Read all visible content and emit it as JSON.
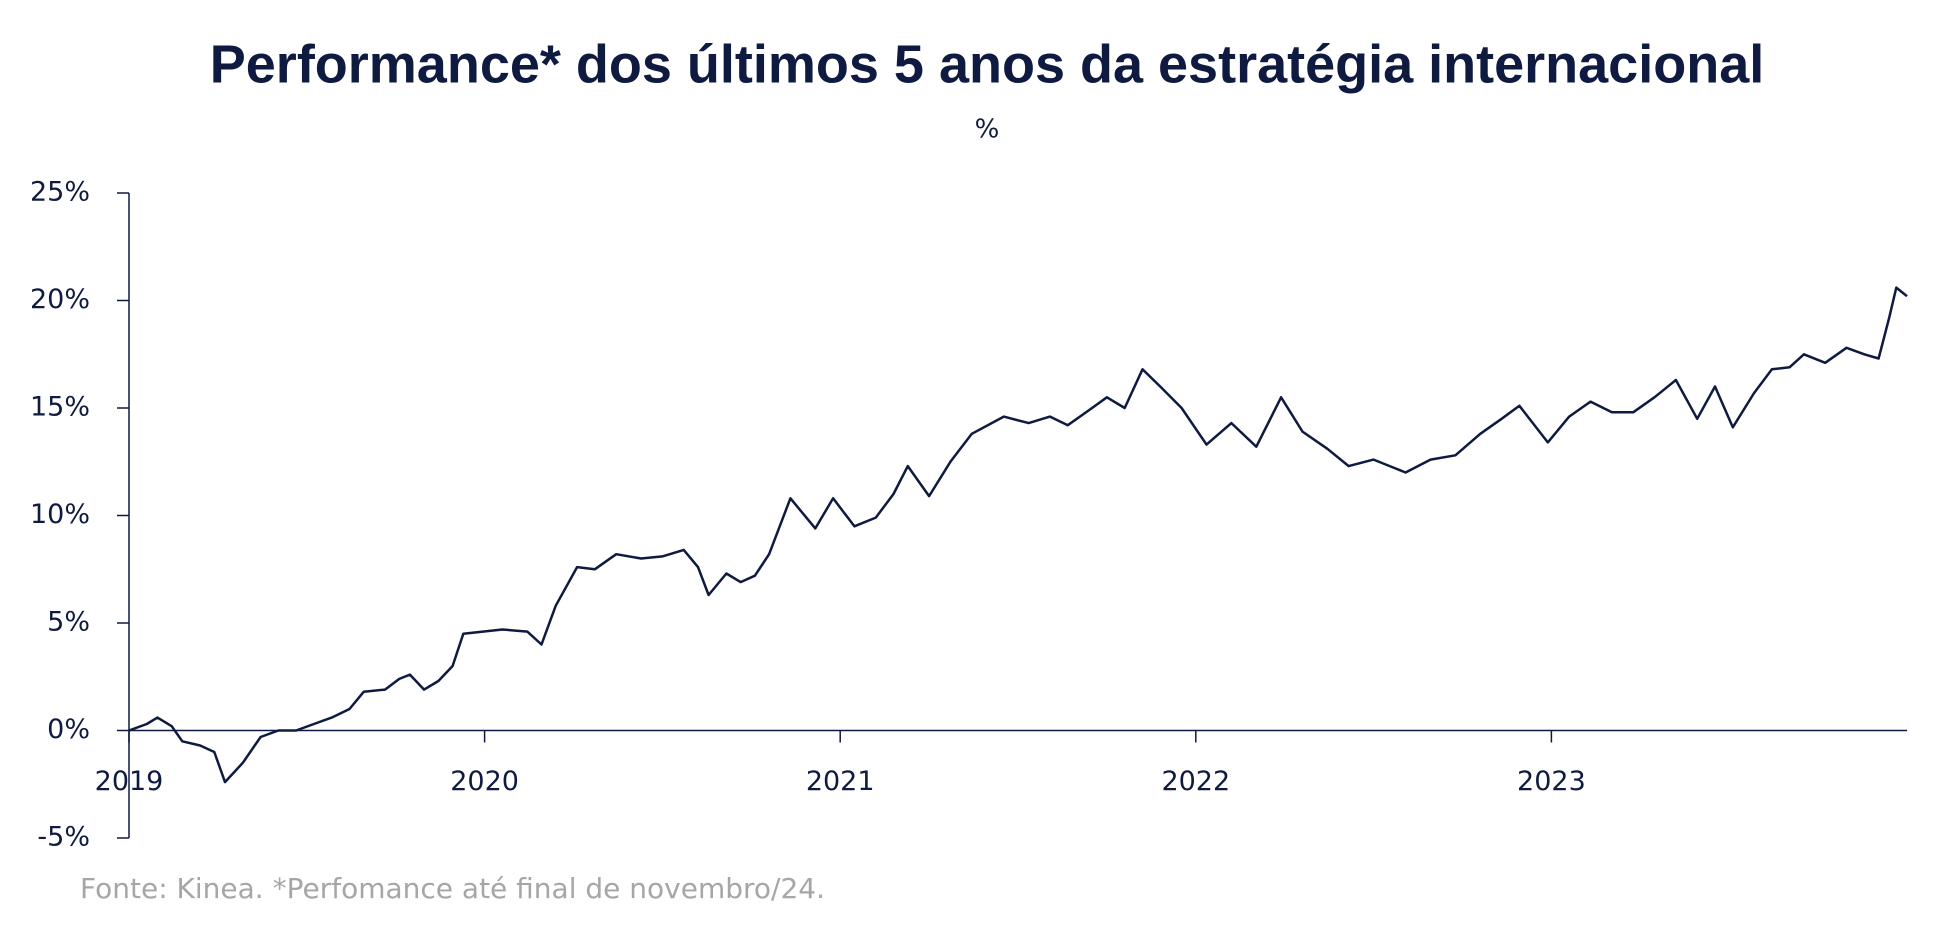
{
  "chart_data": {
    "type": "line",
    "title": "Performance* dos últimos 5 anos da estratégia internacional",
    "subtitle": "%",
    "note": "Fonte: Kinea. *Perfomance até final de novembro/24.",
    "x": [
      2019.0,
      2019.05,
      2019.08,
      2019.12,
      2019.15,
      2019.2,
      2019.24,
      2019.27,
      2019.32,
      2019.37,
      2019.42,
      2019.47,
      2019.52,
      2019.57,
      2019.62,
      2019.66,
      2019.72,
      2019.76,
      2019.79,
      2019.83,
      2019.87,
      2019.91,
      2019.94,
      2020.05,
      2020.12,
      2020.16,
      2020.2,
      2020.26,
      2020.31,
      2020.37,
      2020.44,
      2020.5,
      2020.56,
      2020.6,
      2020.63,
      2020.68,
      2020.72,
      2020.76,
      2020.8,
      2020.86,
      2020.93,
      2020.98,
      2021.04,
      2021.1,
      2021.15,
      2021.19,
      2021.25,
      2021.31,
      2021.37,
      2021.46,
      2021.53,
      2021.59,
      2021.64,
      2021.7,
      2021.75,
      2021.8,
      2021.85,
      2021.9,
      2021.96,
      2022.03,
      2022.1,
      2022.17,
      2022.24,
      2022.3,
      2022.37,
      2022.43,
      2022.5,
      2022.59,
      2022.66,
      2022.73,
      2022.8,
      2022.86,
      2022.91,
      2022.99,
      2023.05,
      2023.11,
      2023.17,
      2023.23,
      2023.29,
      2023.35,
      2023.41,
      2023.46,
      2023.51,
      2023.57,
      2023.62,
      2023.67,
      2023.71,
      2023.77,
      2023.83,
      2023.88,
      2023.92,
      2023.95,
      2023.97,
      2024.0
    ],
    "series": [
      {
        "name": "Performance",
        "color": "#0e1a40",
        "values": [
          0,
          0.3,
          0.6,
          0.2,
          -0.5,
          -0.7,
          -1.0,
          -2.4,
          -1.5,
          -0.3,
          0,
          0,
          0.3,
          0.6,
          1.0,
          1.8,
          1.9,
          2.4,
          2.6,
          1.9,
          2.3,
          3.0,
          4.5,
          4.7,
          4.6,
          4.0,
          5.8,
          7.6,
          7.5,
          8.2,
          8.0,
          8.1,
          8.4,
          7.6,
          6.3,
          7.3,
          6.9,
          7.2,
          8.2,
          10.8,
          9.4,
          10.8,
          9.5,
          9.9,
          11.0,
          12.3,
          10.9,
          12.5,
          13.8,
          14.6,
          14.3,
          14.6,
          14.2,
          14.9,
          15.5,
          15.0,
          16.8,
          16.0,
          15.0,
          13.3,
          14.3,
          13.2,
          15.5,
          13.9,
          13.1,
          12.3,
          12.6,
          12.0,
          12.6,
          12.8,
          13.8,
          14.5,
          15.1,
          13.4,
          14.6,
          15.3,
          14.8,
          14.8,
          15.5,
          16.3,
          14.5,
          16.0,
          14.1,
          15.7,
          16.8,
          16.9,
          17.5,
          17.1,
          17.8,
          17.5,
          17.3,
          19.2,
          20.6,
          20.2
        ]
      }
    ],
    "xlim": [
      2019,
      2024
    ],
    "xticks": [
      2019,
      2020,
      2021,
      2022,
      2023
    ],
    "ylim": [
      -5,
      25
    ],
    "yticks": [
      {
        "value": -5,
        "label": "-5%"
      },
      {
        "value": 0,
        "label": "0%"
      },
      {
        "value": 5,
        "label": "5%"
      },
      {
        "value": 10,
        "label": "10%"
      },
      {
        "value": 15,
        "label": "15%"
      },
      {
        "value": 20,
        "label": "20%"
      },
      {
        "value": 25,
        "label": "25%"
      }
    ]
  }
}
